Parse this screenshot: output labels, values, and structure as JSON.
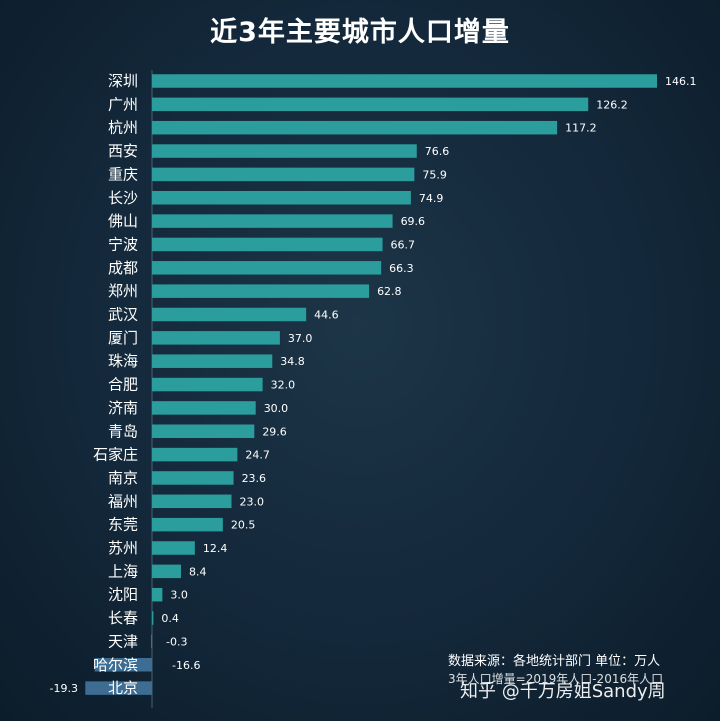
{
  "chart_data": {
    "type": "bar",
    "orientation": "horizontal",
    "title": "近3年主要城市人口增量",
    "categories": [
      "深圳",
      "广州",
      "杭州",
      "西安",
      "重庆",
      "长沙",
      "佛山",
      "宁波",
      "成都",
      "郑州",
      "武汉",
      "厦门",
      "珠海",
      "合肥",
      "济南",
      "青岛",
      "石家庄",
      "南京",
      "福州",
      "东莞",
      "苏州",
      "上海",
      "沈阳",
      "长春",
      "天津",
      "哈尔滨",
      "北京"
    ],
    "values": [
      146.1,
      126.2,
      117.2,
      76.6,
      75.9,
      74.9,
      69.6,
      66.7,
      66.3,
      62.8,
      44.6,
      37.0,
      34.8,
      32.0,
      30.0,
      29.6,
      24.7,
      23.6,
      23.0,
      20.5,
      12.4,
      8.4,
      3.0,
      0.4,
      -0.3,
      -16.6,
      -19.3
    ],
    "value_labels": [
      "146.1",
      "126.2",
      "117.2",
      "76.6",
      "75.9",
      "74.9",
      "69.6",
      "66.7",
      "66.3",
      "62.8",
      "44.6",
      "37.0",
      "34.8",
      "32.0",
      "30.0",
      "29.6",
      "24.7",
      "23.6",
      "23.0",
      "20.5",
      "12.4",
      "8.4",
      "3.0",
      "0.4",
      "-0.3",
      "-16.6",
      "-19.3"
    ],
    "bar_color": "#2a9d9c",
    "negative_bar_color": "#3d6d92",
    "text_color": "#ffffff",
    "grid": false
  },
  "note": {
    "source": "数据来源：各地统计部门 单位：万人",
    "line2": "3年人口增量=2019年人口-2016年人口"
  },
  "watermark": "知乎 @千万房姐Sandy周"
}
